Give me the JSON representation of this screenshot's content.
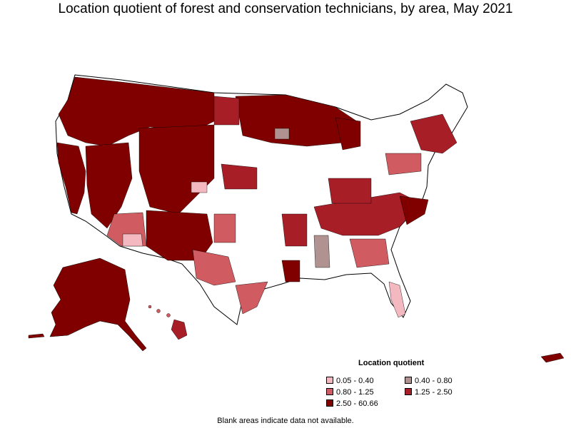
{
  "title": "Location quotient of forest and conservation technicians, by area, May 2021",
  "legend": {
    "title": "Location quotient",
    "items": [
      {
        "label": "0.05 - 0.40",
        "color": "#f4b9c0"
      },
      {
        "label": "0.40 - 0.80",
        "color": "#b09390"
      },
      {
        "label": "0.80 - 1.25",
        "color": "#d05b60"
      },
      {
        "label": "1.25 - 2.50",
        "color": "#a81e27"
      },
      {
        "label": "2.50 - 60.66",
        "color": "#800000"
      }
    ]
  },
  "footnote": "Blank areas indicate data not available.",
  "colors": {
    "no_data": "#ffffff",
    "border": "#000000"
  }
}
